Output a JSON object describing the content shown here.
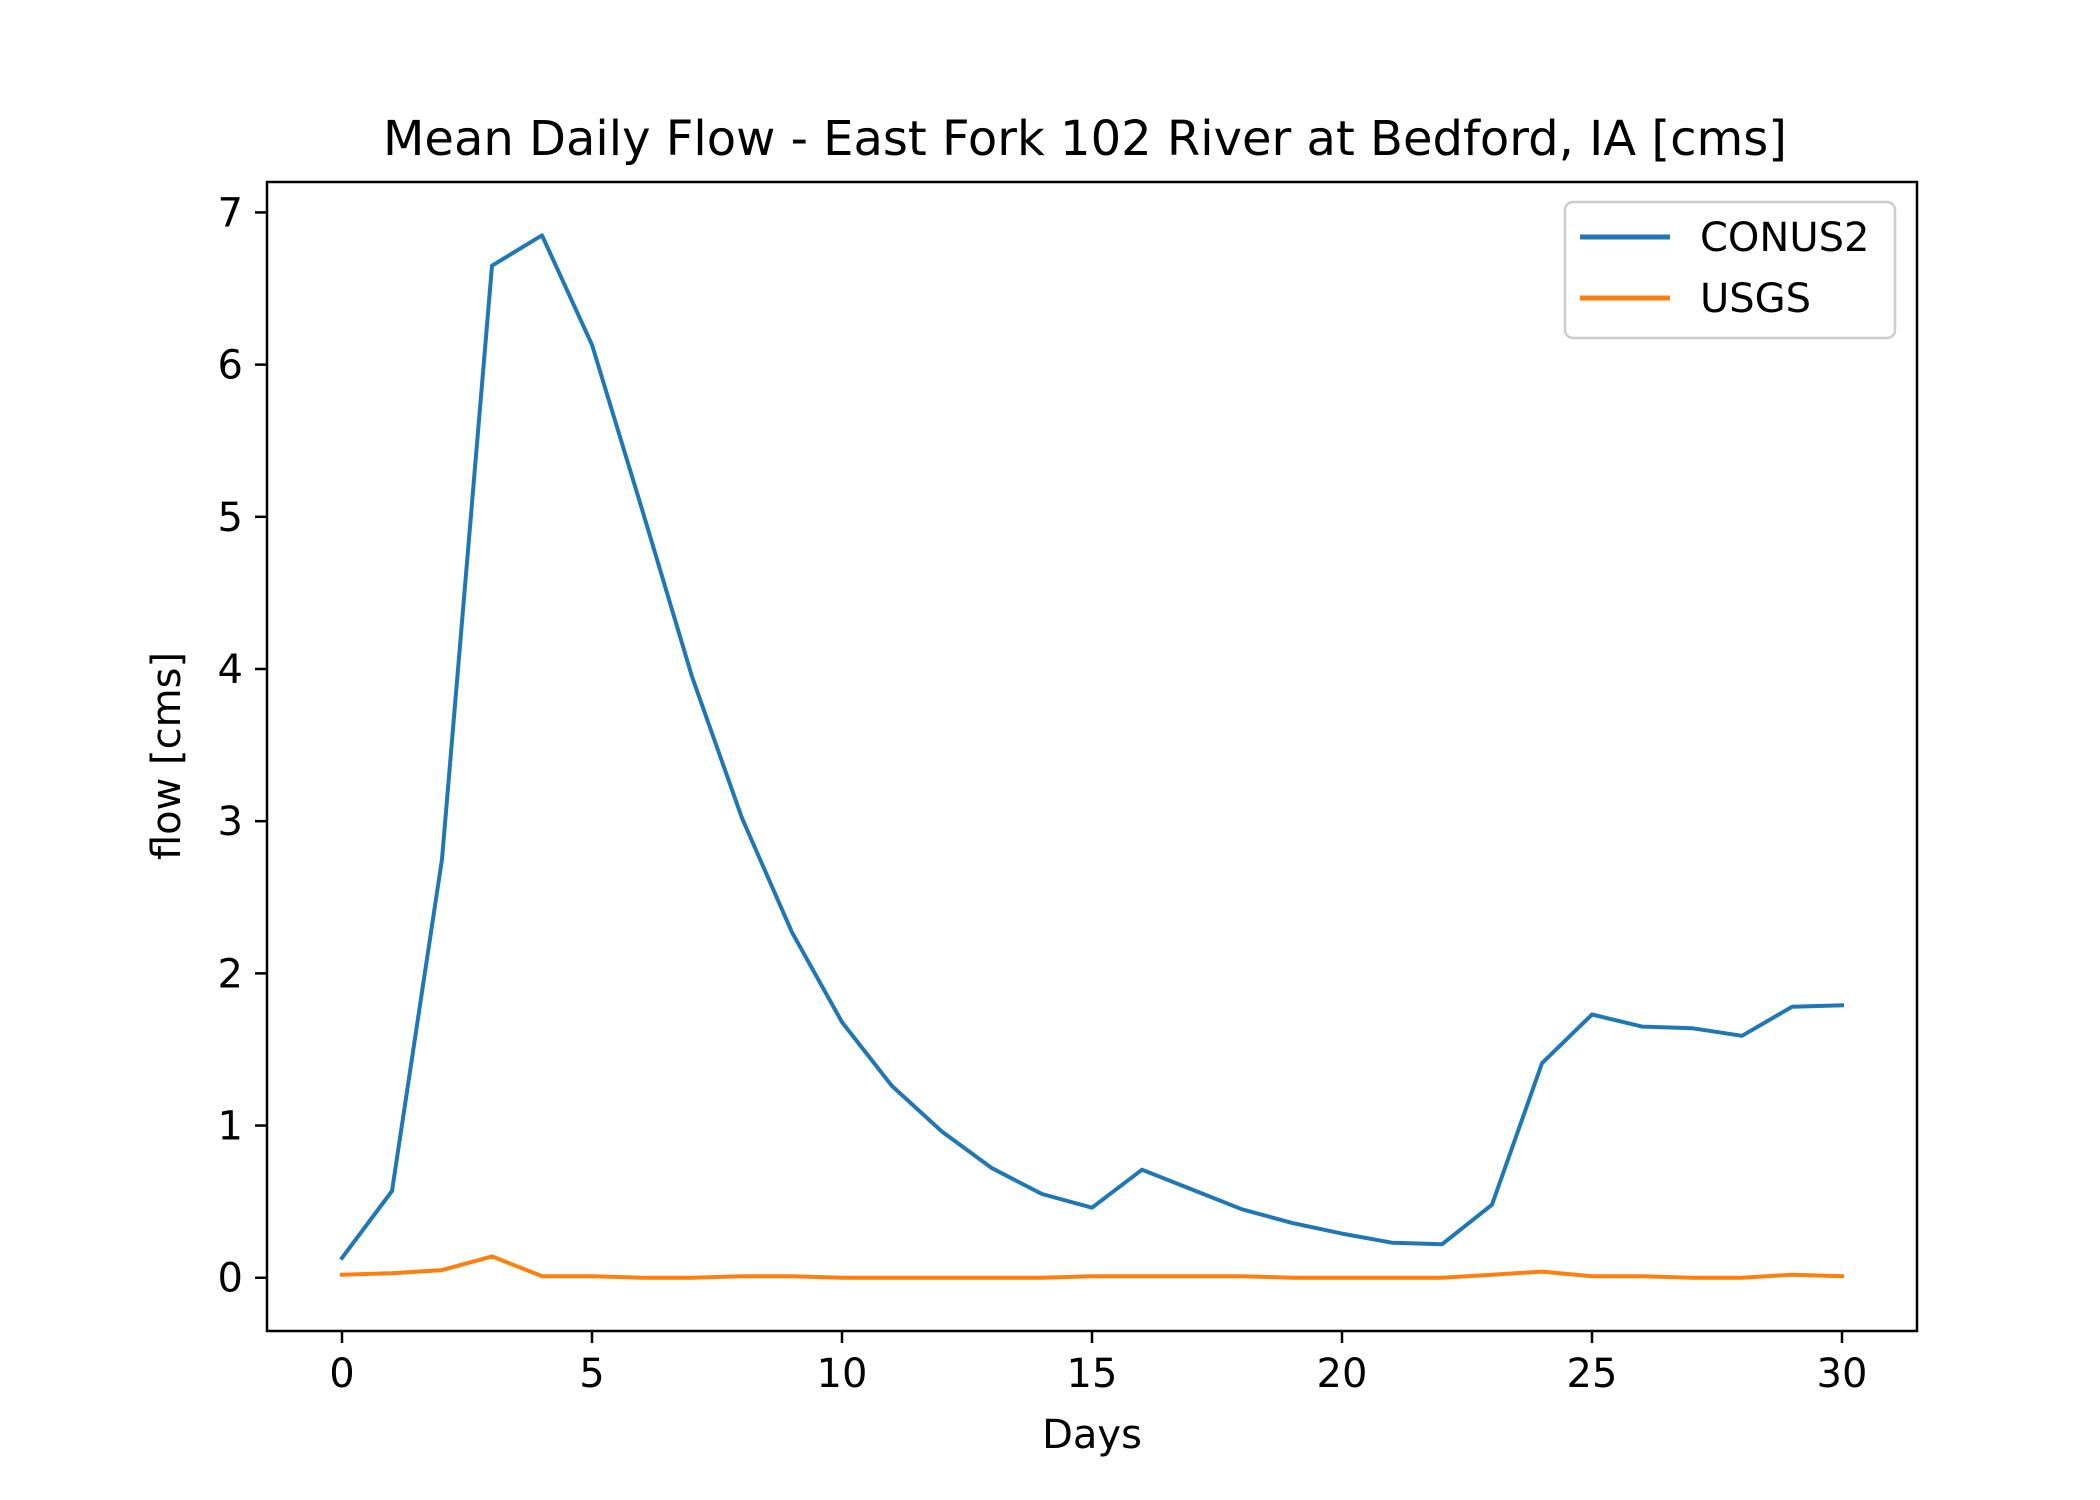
{
  "chart_data": {
    "type": "line",
    "title": "Mean Daily Flow - East Fork 102 River at Bedford, IA [cms]",
    "xlabel": "Days",
    "ylabel": "flow [cms]",
    "xlim": [
      -1.5,
      31.5
    ],
    "ylim": [
      -0.35,
      7.2
    ],
    "xticks": [
      0,
      5,
      10,
      15,
      20,
      25,
      30
    ],
    "yticks": [
      0,
      1,
      2,
      3,
      4,
      5,
      6,
      7
    ],
    "grid": false,
    "legend_position": "top-right",
    "x": [
      0,
      1,
      2,
      3,
      4,
      5,
      6,
      7,
      8,
      9,
      10,
      11,
      12,
      13,
      14,
      15,
      16,
      17,
      18,
      19,
      20,
      21,
      22,
      23,
      24,
      25,
      26,
      27,
      28,
      29,
      30
    ],
    "series": [
      {
        "name": "CONUS2",
        "color": "#1f77b4",
        "values": [
          0.13,
          0.57,
          2.75,
          6.65,
          6.85,
          6.13,
          5.05,
          3.95,
          3.02,
          2.27,
          1.68,
          1.26,
          0.96,
          0.72,
          0.55,
          0.46,
          0.71,
          0.58,
          0.45,
          0.36,
          0.29,
          0.23,
          0.22,
          0.48,
          1.41,
          1.73,
          1.65,
          1.64,
          1.59,
          1.78,
          1.79
        ]
      },
      {
        "name": "USGS",
        "color": "#ff7f0e",
        "values": [
          0.02,
          0.03,
          0.05,
          0.14,
          0.01,
          0.01,
          0.0,
          0.0,
          0.01,
          0.01,
          0.0,
          0.0,
          0.0,
          0.0,
          0.0,
          0.01,
          0.01,
          0.01,
          0.01,
          0.0,
          0.0,
          0.0,
          0.0,
          0.02,
          0.04,
          0.01,
          0.01,
          0.0,
          0.0,
          0.02,
          0.01
        ]
      }
    ]
  }
}
